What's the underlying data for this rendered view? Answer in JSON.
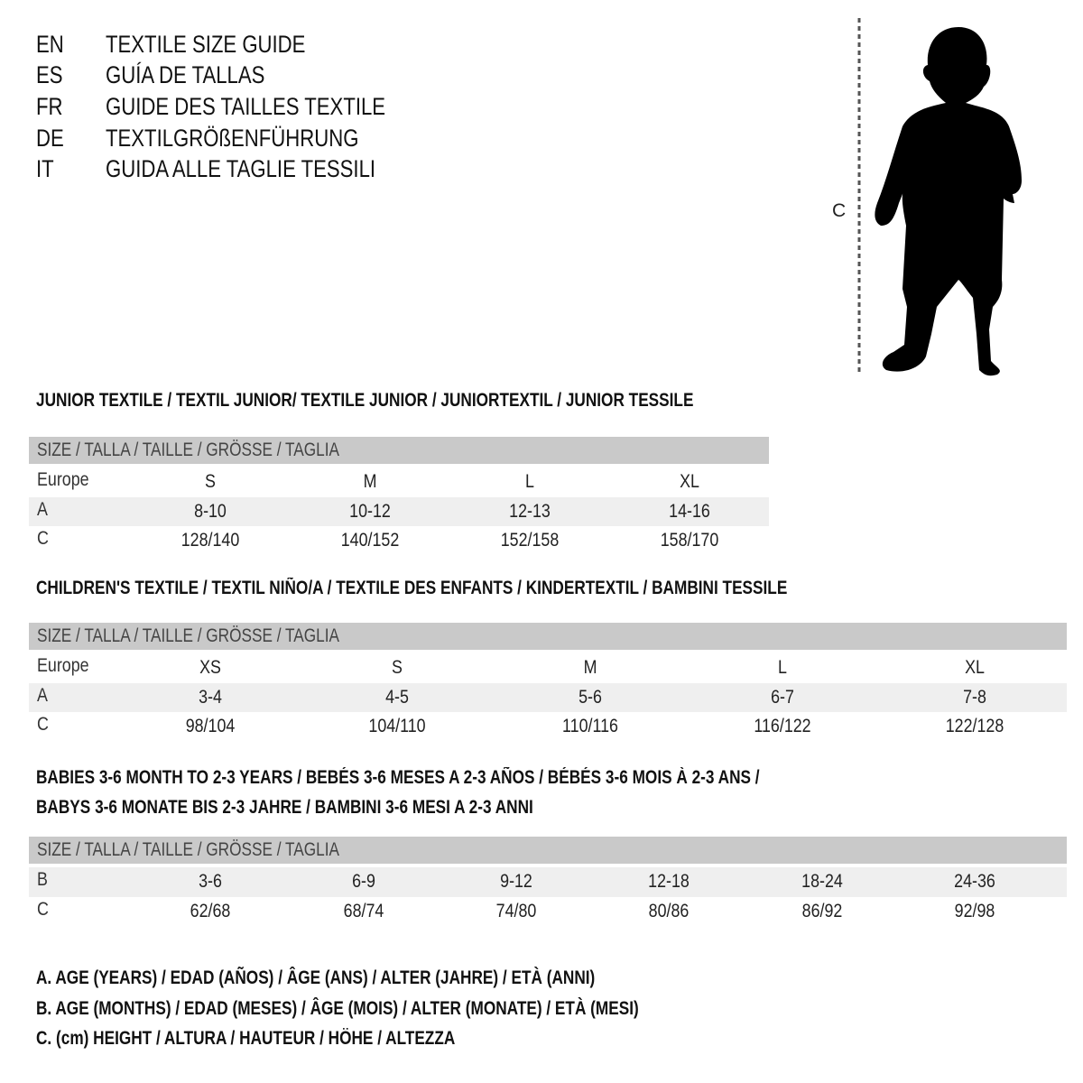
{
  "titles": [
    {
      "lang": "EN",
      "text": "TEXTILE SIZE GUIDE"
    },
    {
      "lang": "ES",
      "text": "GUÍA DE TALLAS"
    },
    {
      "lang": "FR",
      "text": "GUIDE DES TAILLES TEXTILE"
    },
    {
      "lang": "DE",
      "text": "TEXTILGRÖßENFÜHRUNG"
    },
    {
      "lang": "IT",
      "text": "GUIDA ALLE TAGLIE TESSILI"
    }
  ],
  "figure": {
    "measure_label": "C",
    "icon": "child-silhouette"
  },
  "sections": [
    {
      "title": [
        "JUNIOR TEXTILE / TEXTIL JUNIOR/ TEXTILE JUNIOR / JUNIORTEXTIL / JUNIOR TESSILE"
      ],
      "header": "SIZE / TALLA / TAILLE / GRÖSSE / TAGLIA",
      "rows": [
        {
          "label": "Europe",
          "values": [
            "S",
            "M",
            "L",
            "XL"
          ]
        },
        {
          "label": "A",
          "values": [
            "8-10",
            "10-12",
            "12-13",
            "14-16"
          ]
        },
        {
          "label": "C",
          "values": [
            "128/140",
            "140/152",
            "152/158",
            "158/170"
          ]
        }
      ]
    },
    {
      "title": [
        "CHILDREN'S TEXTILE / TEXTIL NIÑO/A / TEXTILE DES ENFANTS / KINDERTEXTIL / BAMBINI TESSILE"
      ],
      "header": "SIZE / TALLA / TAILLE / GRÖSSE / TAGLIA",
      "rows": [
        {
          "label": "Europe",
          "values": [
            "XS",
            "S",
            "M",
            "L",
            "XL"
          ]
        },
        {
          "label": "A",
          "values": [
            "3-4",
            "4-5",
            "5-6",
            "6-7",
            "7-8"
          ]
        },
        {
          "label": "C",
          "values": [
            "98/104",
            "104/110",
            "110/116",
            "116/122",
            "122/128"
          ]
        }
      ]
    },
    {
      "title": [
        "BABIES 3-6 MONTH TO 2-3 YEARS / BEBÉS 3-6 MESES A 2-3 AÑOS / BÉBÉS 3-6 MOIS À 2-3 ANS /",
        "BABYS 3-6 MONATE BIS 2-3 JAHRE / BAMBINI 3-6 MESI A 2-3 ANNI"
      ],
      "header": "SIZE / TALLA / TAILLE / GRÖSSE / TAGLIA",
      "rows": [
        {
          "label": "B",
          "values": [
            "3-6",
            "6-9",
            "9-12",
            "12-18",
            "18-24",
            "24-36"
          ]
        },
        {
          "label": "C",
          "values": [
            "62/68",
            "68/74",
            "74/80",
            "80/86",
            "86/92",
            "92/98"
          ]
        }
      ]
    }
  ],
  "legend": [
    "A. AGE (YEARS) / EDAD (AÑOS) / ÂGE (ANS) / ALTER (JAHRE) / ETÀ (ANNI)",
    "B. AGE (MONTHS) / EDAD (MESES) / ÂGE (MOIS) / ALTER (MONATE) / ETÀ (MESI)",
    "C. (cm) HEIGHT / ALTURA / HAUTEUR / HÖHE / ALTEZZA"
  ],
  "colors": {
    "header_bg": "#c9c9c9",
    "shade_bg": "#efefef",
    "text": "#111111"
  }
}
